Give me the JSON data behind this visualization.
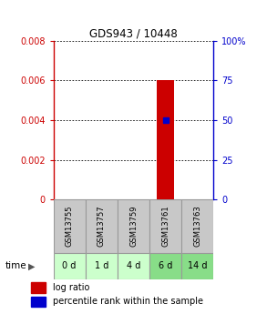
{
  "title": "GDS943 / 10448",
  "samples": [
    "GSM13755",
    "GSM13757",
    "GSM13759",
    "GSM13761",
    "GSM13763"
  ],
  "time_labels": [
    "0 d",
    "1 d",
    "4 d",
    "6 d",
    "14 d"
  ],
  "log_ratio_values": [
    null,
    null,
    null,
    0.006,
    null
  ],
  "percentile_values": [
    null,
    null,
    null,
    50.0,
    null
  ],
  "left_ylim": [
    0,
    0.008
  ],
  "right_ylim": [
    0,
    100
  ],
  "left_yticks": [
    0,
    0.002,
    0.004,
    0.006,
    0.008
  ],
  "right_yticks": [
    0,
    25,
    50,
    75,
    100
  ],
  "left_yticklabels": [
    "0",
    "0.002",
    "0.004",
    "0.006",
    "0.008"
  ],
  "right_yticklabels": [
    "0",
    "25",
    "50",
    "75",
    "100%"
  ],
  "left_axis_color": "#cc0000",
  "right_axis_color": "#0000cc",
  "bar_color": "#cc0000",
  "dot_color": "#0000cc",
  "sample_box_color": "#c8c8c8",
  "time_box_colors": [
    "#ccffcc",
    "#ccffcc",
    "#ccffcc",
    "#88dd88",
    "#88dd88"
  ],
  "grid_color": "#000000",
  "background_color": "#ffffff",
  "legend_items": [
    "log ratio",
    "percentile rank within the sample"
  ],
  "legend_colors": [
    "#cc0000",
    "#0000cc"
  ],
  "time_label": "time",
  "active_sample_index": 3
}
